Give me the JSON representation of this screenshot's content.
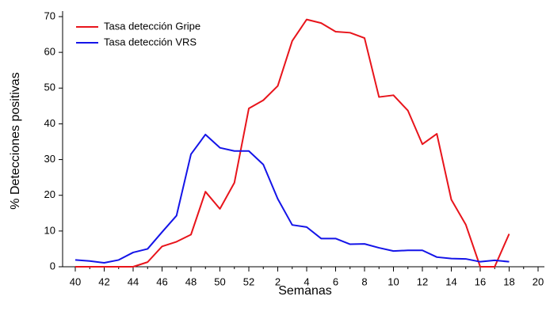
{
  "chart_data": {
    "type": "line",
    "x_label": "Semanas",
    "y_label": "% Detecciones positivas",
    "categories": [
      "40",
      null,
      "42",
      null,
      "44",
      null,
      "46",
      null,
      "48",
      null,
      "50",
      null,
      "52",
      null,
      "2",
      null,
      "4",
      null,
      "6",
      null,
      "8",
      null,
      "10",
      null,
      "12",
      null,
      "14",
      null,
      "16",
      null,
      "18",
      null,
      "20"
    ],
    "series": [
      {
        "name": "Tasa detección Gripe",
        "color": "#e8141b",
        "values": [
          0,
          0,
          0,
          0,
          0,
          1.3,
          5.7,
          7,
          9,
          21,
          16.2,
          23.5,
          44.3,
          46.6,
          50.6,
          63.2,
          69.2,
          68.2,
          65.8,
          65.5,
          64,
          47.5,
          48,
          43.7,
          34.3,
          37.2,
          18.8,
          11.8,
          0,
          0,
          9.2,
          null,
          null
        ]
      },
      {
        "name": "Tasa detección VRS",
        "color": "#1414e8",
        "values": [
          1.9,
          1.6,
          1.1,
          1.9,
          4,
          5,
          9.7,
          14.3,
          31.5,
          37,
          33.3,
          32.4,
          32.4,
          28.6,
          19,
          11.7,
          11.1,
          7.9,
          7.9,
          6.3,
          6.4,
          5.3,
          4.4,
          4.6,
          4.6,
          2.7,
          2.3,
          2.2,
          1.4,
          1.8,
          1.4,
          null,
          null
        ]
      }
    ],
    "ylim": [
      0,
      70
    ],
    "yticks": [
      0,
      10,
      20,
      30,
      40,
      50,
      60,
      70
    ],
    "grid": false,
    "legend": "upper left"
  }
}
